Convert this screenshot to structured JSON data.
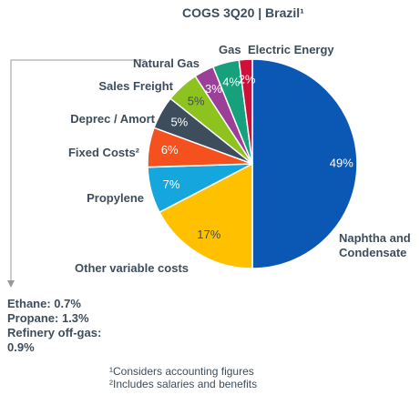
{
  "chart_data": {
    "type": "pie",
    "title": "COGS 3Q20 | Brazil¹",
    "categories": [
      "Naphtha and Condensate",
      "Other variable costs",
      "Propylene",
      "Fixed Costs²",
      "Deprec / Amort",
      "Sales Freight",
      "Natural Gas",
      "Gas",
      "Electric Energy"
    ],
    "values": [
      49,
      17,
      7,
      6,
      5,
      5,
      3,
      4,
      2
    ],
    "value_labels": [
      "49%",
      "17%",
      "7%",
      "6%",
      "5%",
      "5%",
      "3%",
      "4%",
      "2%"
    ],
    "colors": [
      "#0b57b4",
      "#ffc000",
      "#16a6de",
      "#f4511e",
      "#3e4d5b",
      "#8dc21f",
      "#9c3f98",
      "#17a07c",
      "#d0103a"
    ]
  },
  "notes": [
    "Ethane: 0.7%",
    "Propane: 1.3%",
    "Refinery off-gas: 0.9%"
  ],
  "footnotes": [
    "¹Considers accounting figures",
    "²Includes salaries and benefits"
  ]
}
